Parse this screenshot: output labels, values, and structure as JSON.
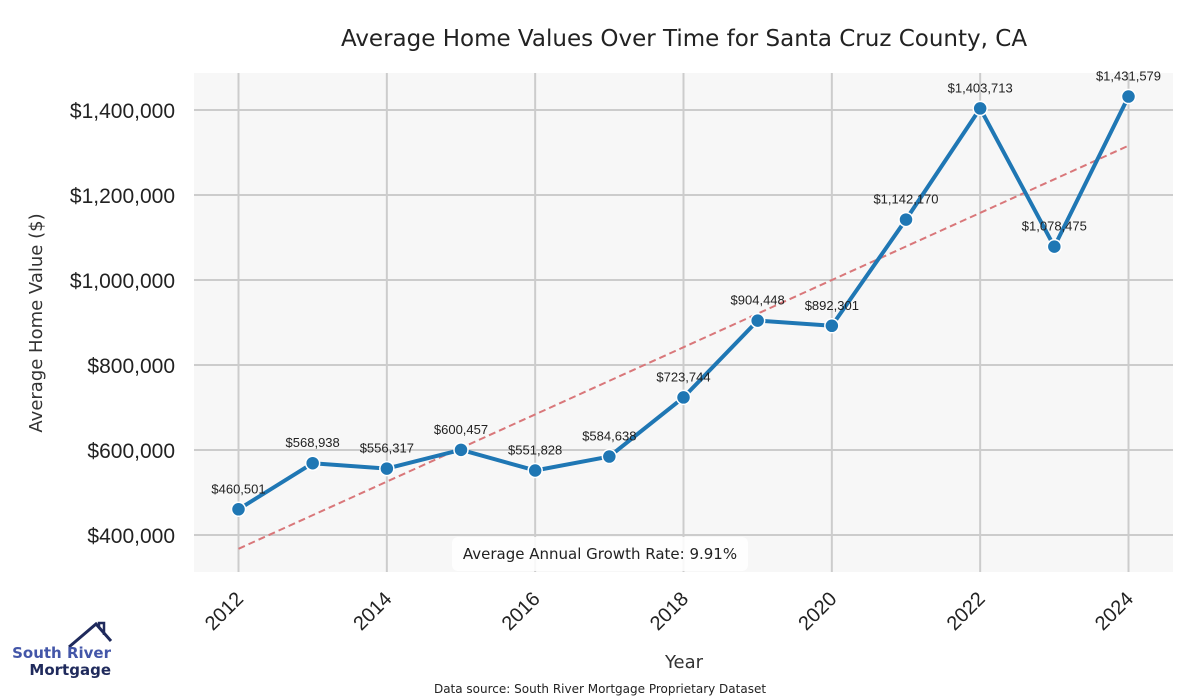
{
  "chart_data": {
    "type": "line",
    "title": "Average Home Values Over Time for Santa Cruz County, CA",
    "xlabel": "Year",
    "ylabel": "Average Home Value ($)",
    "x": [
      2012,
      2013,
      2014,
      2015,
      2016,
      2017,
      2018,
      2019,
      2020,
      2021,
      2022,
      2023,
      2024
    ],
    "series": [
      {
        "name": "Average Home Value",
        "color": "#1f77b4",
        "values": [
          460501,
          568938,
          556317,
          600457,
          551828,
          584638,
          723744,
          904448,
          892301,
          1142170,
          1403713,
          1078475,
          1431579
        ],
        "labels": [
          "$460,501",
          "$568,938",
          "$556,317",
          "$600,457",
          "$551,828",
          "$584,638",
          "$723,744",
          "$904,448",
          "$892,301",
          "$1,142,170",
          "$1,403,713",
          "$1,078,475",
          "$1,431,579"
        ]
      }
    ],
    "trendline": {
      "name": "Trend",
      "color": "#d9777a",
      "style": "dashed",
      "start": {
        "x": 2012,
        "y": 367600
      },
      "end": {
        "x": 2024,
        "y": 1316000
      }
    },
    "xticks": [
      2012,
      2014,
      2016,
      2018,
      2020,
      2022,
      2024
    ],
    "xtick_labels": [
      "2012",
      "2014",
      "2016",
      "2018",
      "2020",
      "2022",
      "2024"
    ],
    "yticks": [
      400000,
      600000,
      800000,
      1000000,
      1200000,
      1400000
    ],
    "ytick_labels": [
      "$400,000",
      "$600,000",
      "$800,000",
      "$1,000,000",
      "$1,200,000",
      "$1,400,000"
    ],
    "xlim": [
      2011.4,
      2024.6
    ],
    "ylim": [
      313000,
      1487000
    ],
    "grid": true,
    "annotation": "Average Annual Growth Rate: 9.91%",
    "annotation_position": "bottom-center"
  },
  "footer": {
    "source": "Data source: South River Mortgage Proprietary Dataset"
  },
  "logo": {
    "line1": "South River",
    "line2": "Mortgage",
    "color1": "#4356a8",
    "color2": "#1f2a5c"
  },
  "colors": {
    "plot_bg": "#f7f7f7",
    "grid": "#cccccc"
  }
}
